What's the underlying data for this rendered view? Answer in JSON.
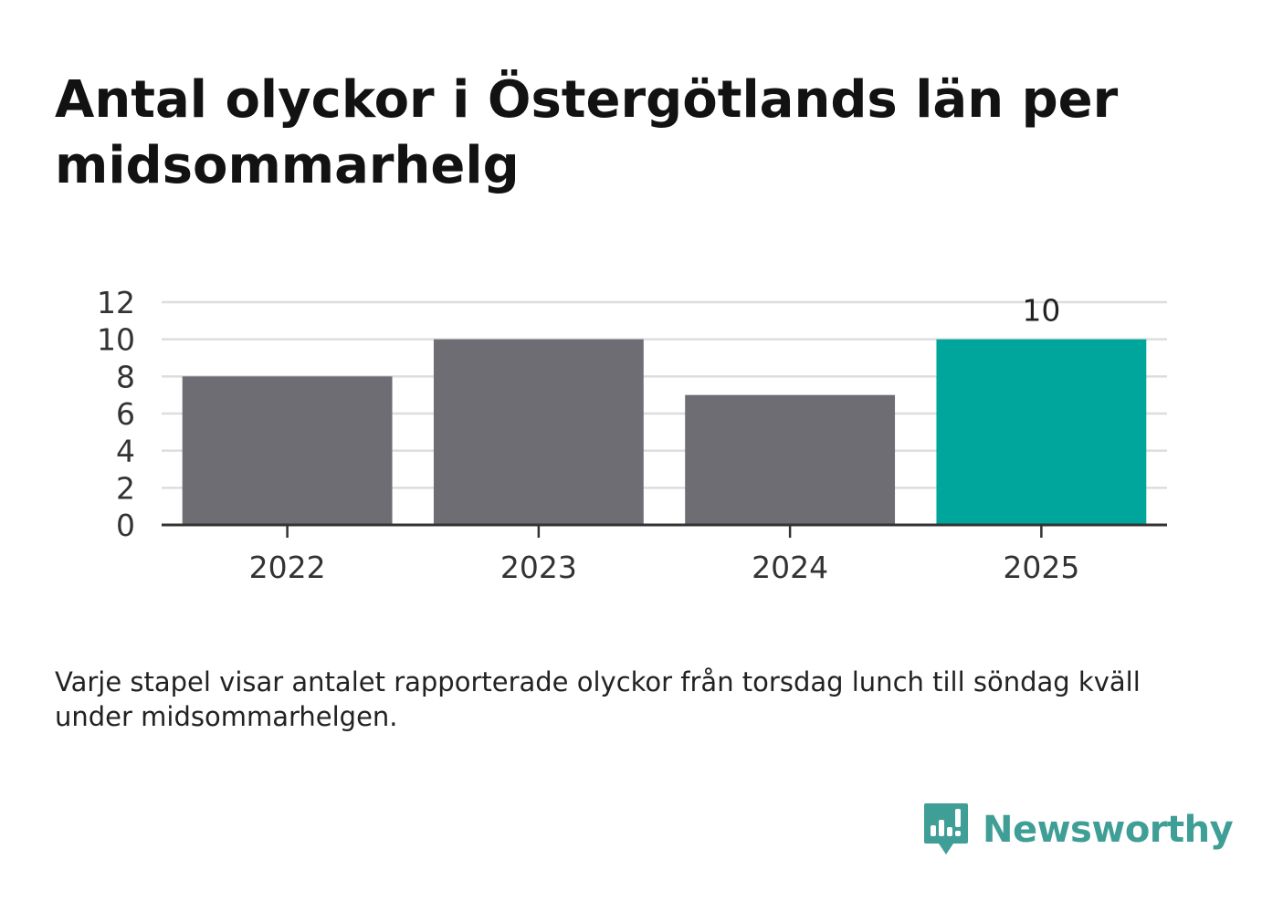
{
  "title": "Antal olyckor i Östergötlands län per midsommarhelg",
  "note": "Varje stapel visar antalet rapporterade olyckor från torsdag lunch till söndag kväll under midsommarhelgen.",
  "logo": {
    "name": "Newsworthy",
    "icon": "newsworthy-logo-icon"
  },
  "colors": {
    "bar": "#6e6d73",
    "highlight": "#00a59b",
    "grid": "#dddddd",
    "axis": "#333333"
  },
  "chart_data": {
    "type": "bar",
    "categories": [
      "2022",
      "2023",
      "2024",
      "2025"
    ],
    "values": [
      8,
      10,
      7,
      10
    ],
    "highlight_index": 3,
    "data_labels": [
      null,
      null,
      null,
      "10"
    ],
    "yticks": [
      "0",
      "2",
      "4",
      "6",
      "8",
      "10",
      "12"
    ],
    "ylim": [
      0,
      12
    ],
    "xlabel": "",
    "ylabel": "",
    "grid": true,
    "legend": "none"
  }
}
